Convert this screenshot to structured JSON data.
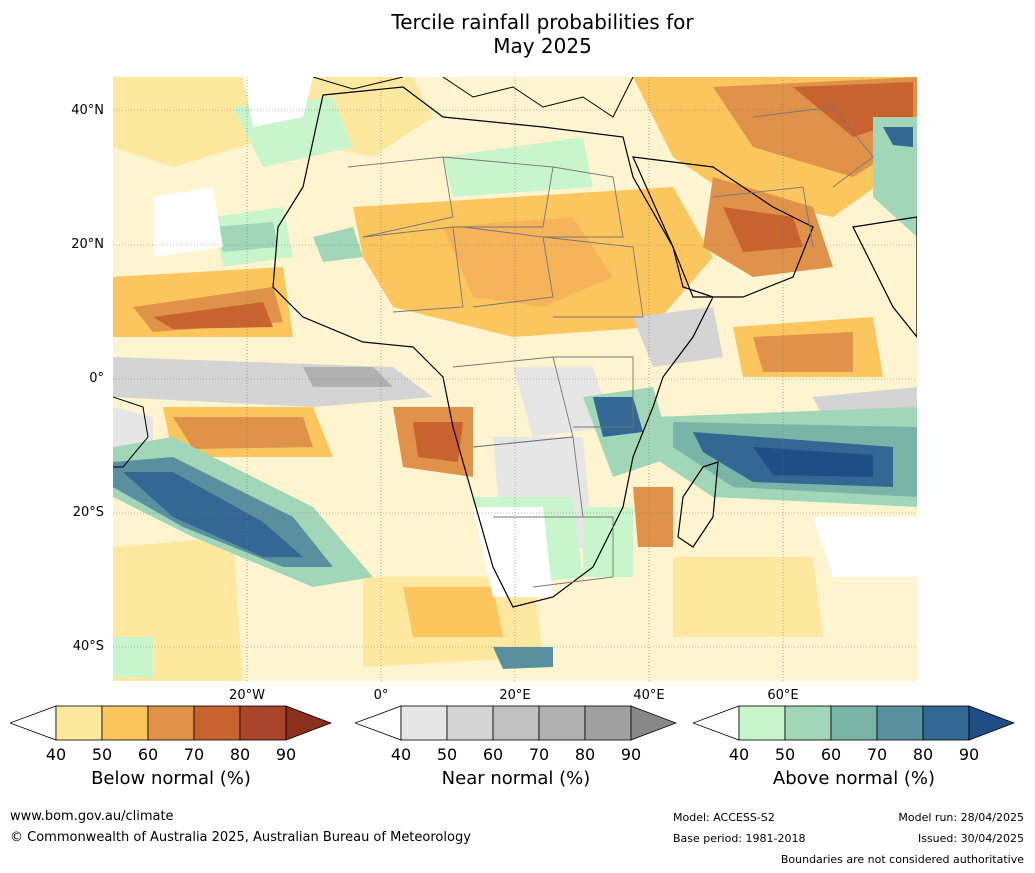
{
  "title_line1": "Tercile rainfall probabilities for",
  "title_line2": "May 2025",
  "lat_labels": [
    "40°N",
    "20°N",
    "0°",
    "20°S",
    "40°S"
  ],
  "lon_labels": [
    "20°W",
    "0°",
    "20°E",
    "40°E",
    "60°E"
  ],
  "legend": {
    "below": {
      "label": "Below normal (%)",
      "ticks": [
        "40",
        "50",
        "60",
        "70",
        "80",
        "90"
      ],
      "colors": [
        "#ffffff",
        "#fee8a0",
        "#fcc65f",
        "#e0924a",
        "#c8622f",
        "#a9452a",
        "#8a2e1d"
      ]
    },
    "near": {
      "label": "Near normal (%)",
      "ticks": [
        "40",
        "50",
        "60",
        "70",
        "80",
        "90"
      ],
      "colors": [
        "#ffffff",
        "#e6e6e6",
        "#d4d4d4",
        "#c0c0c0",
        "#b0b0b0",
        "#a0a0a0",
        "#888888"
      ]
    },
    "above": {
      "label": "Above normal (%)",
      "ticks": [
        "40",
        "50",
        "60",
        "70",
        "80",
        "90"
      ],
      "colors": [
        "#ffffff",
        "#c9f5cc",
        "#a1d6b8",
        "#7ab3a8",
        "#5a8fa0",
        "#336794",
        "#1e4e85"
      ]
    }
  },
  "footer": {
    "website": "www.bom.gov.au/climate",
    "copyright": "© Commonwealth of Australia 2025, Australian Bureau of Meteorology",
    "model": "Model: ACCESS-S2",
    "base_period": "Base period: 1981-2018",
    "model_run": "Model run: 28/04/2025",
    "issued": "Issued: 30/04/2025",
    "disclaimer": "Boundaries are not considered authoritative"
  }
}
